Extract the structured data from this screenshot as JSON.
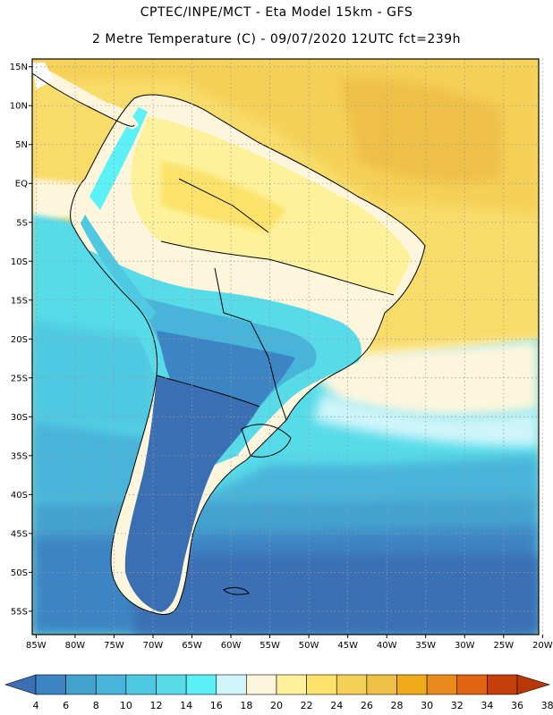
{
  "title_line1": "CPTEC/INPE/MCT  -   Eta Model 15km  -  GFS",
  "title_line2": "2 Metre Temperature (C) - 09/07/2020 12UTC fct=239h",
  "map": {
    "lat_labels": [
      "15N",
      "10N",
      "5N",
      "EQ",
      "5S",
      "10S",
      "15S",
      "20S",
      "25S",
      "30S",
      "35S",
      "40S",
      "45S",
      "50S",
      "55S"
    ],
    "lon_labels": [
      "85W",
      "80W",
      "75W",
      "70W",
      "65W",
      "60W",
      "55W",
      "50W",
      "45W",
      "40W",
      "35W",
      "30W",
      "25W",
      "20W"
    ],
    "lat_range": [
      -58,
      16
    ],
    "lon_range": [
      -85.5,
      -20.5
    ],
    "gridlines": "dotted"
  },
  "colorbar": {
    "levels": [
      "4",
      "6",
      "8",
      "10",
      "12",
      "14",
      "16",
      "18",
      "20",
      "22",
      "24",
      "26",
      "28",
      "30",
      "32",
      "34",
      "36",
      "38"
    ],
    "colors": [
      "#3a6fb4",
      "#3c84c4",
      "#44a2cf",
      "#48b4d9",
      "#4fc8e1",
      "#57dbe9",
      "#5cf1f6",
      "#cff5fa",
      "#fdf6dc",
      "#fdf29b",
      "#fbe26b",
      "#f5d056",
      "#efc046",
      "#f1ac1c",
      "#eb8a1c",
      "#e06411",
      "#c63f0b",
      "#b83808"
    ]
  }
}
